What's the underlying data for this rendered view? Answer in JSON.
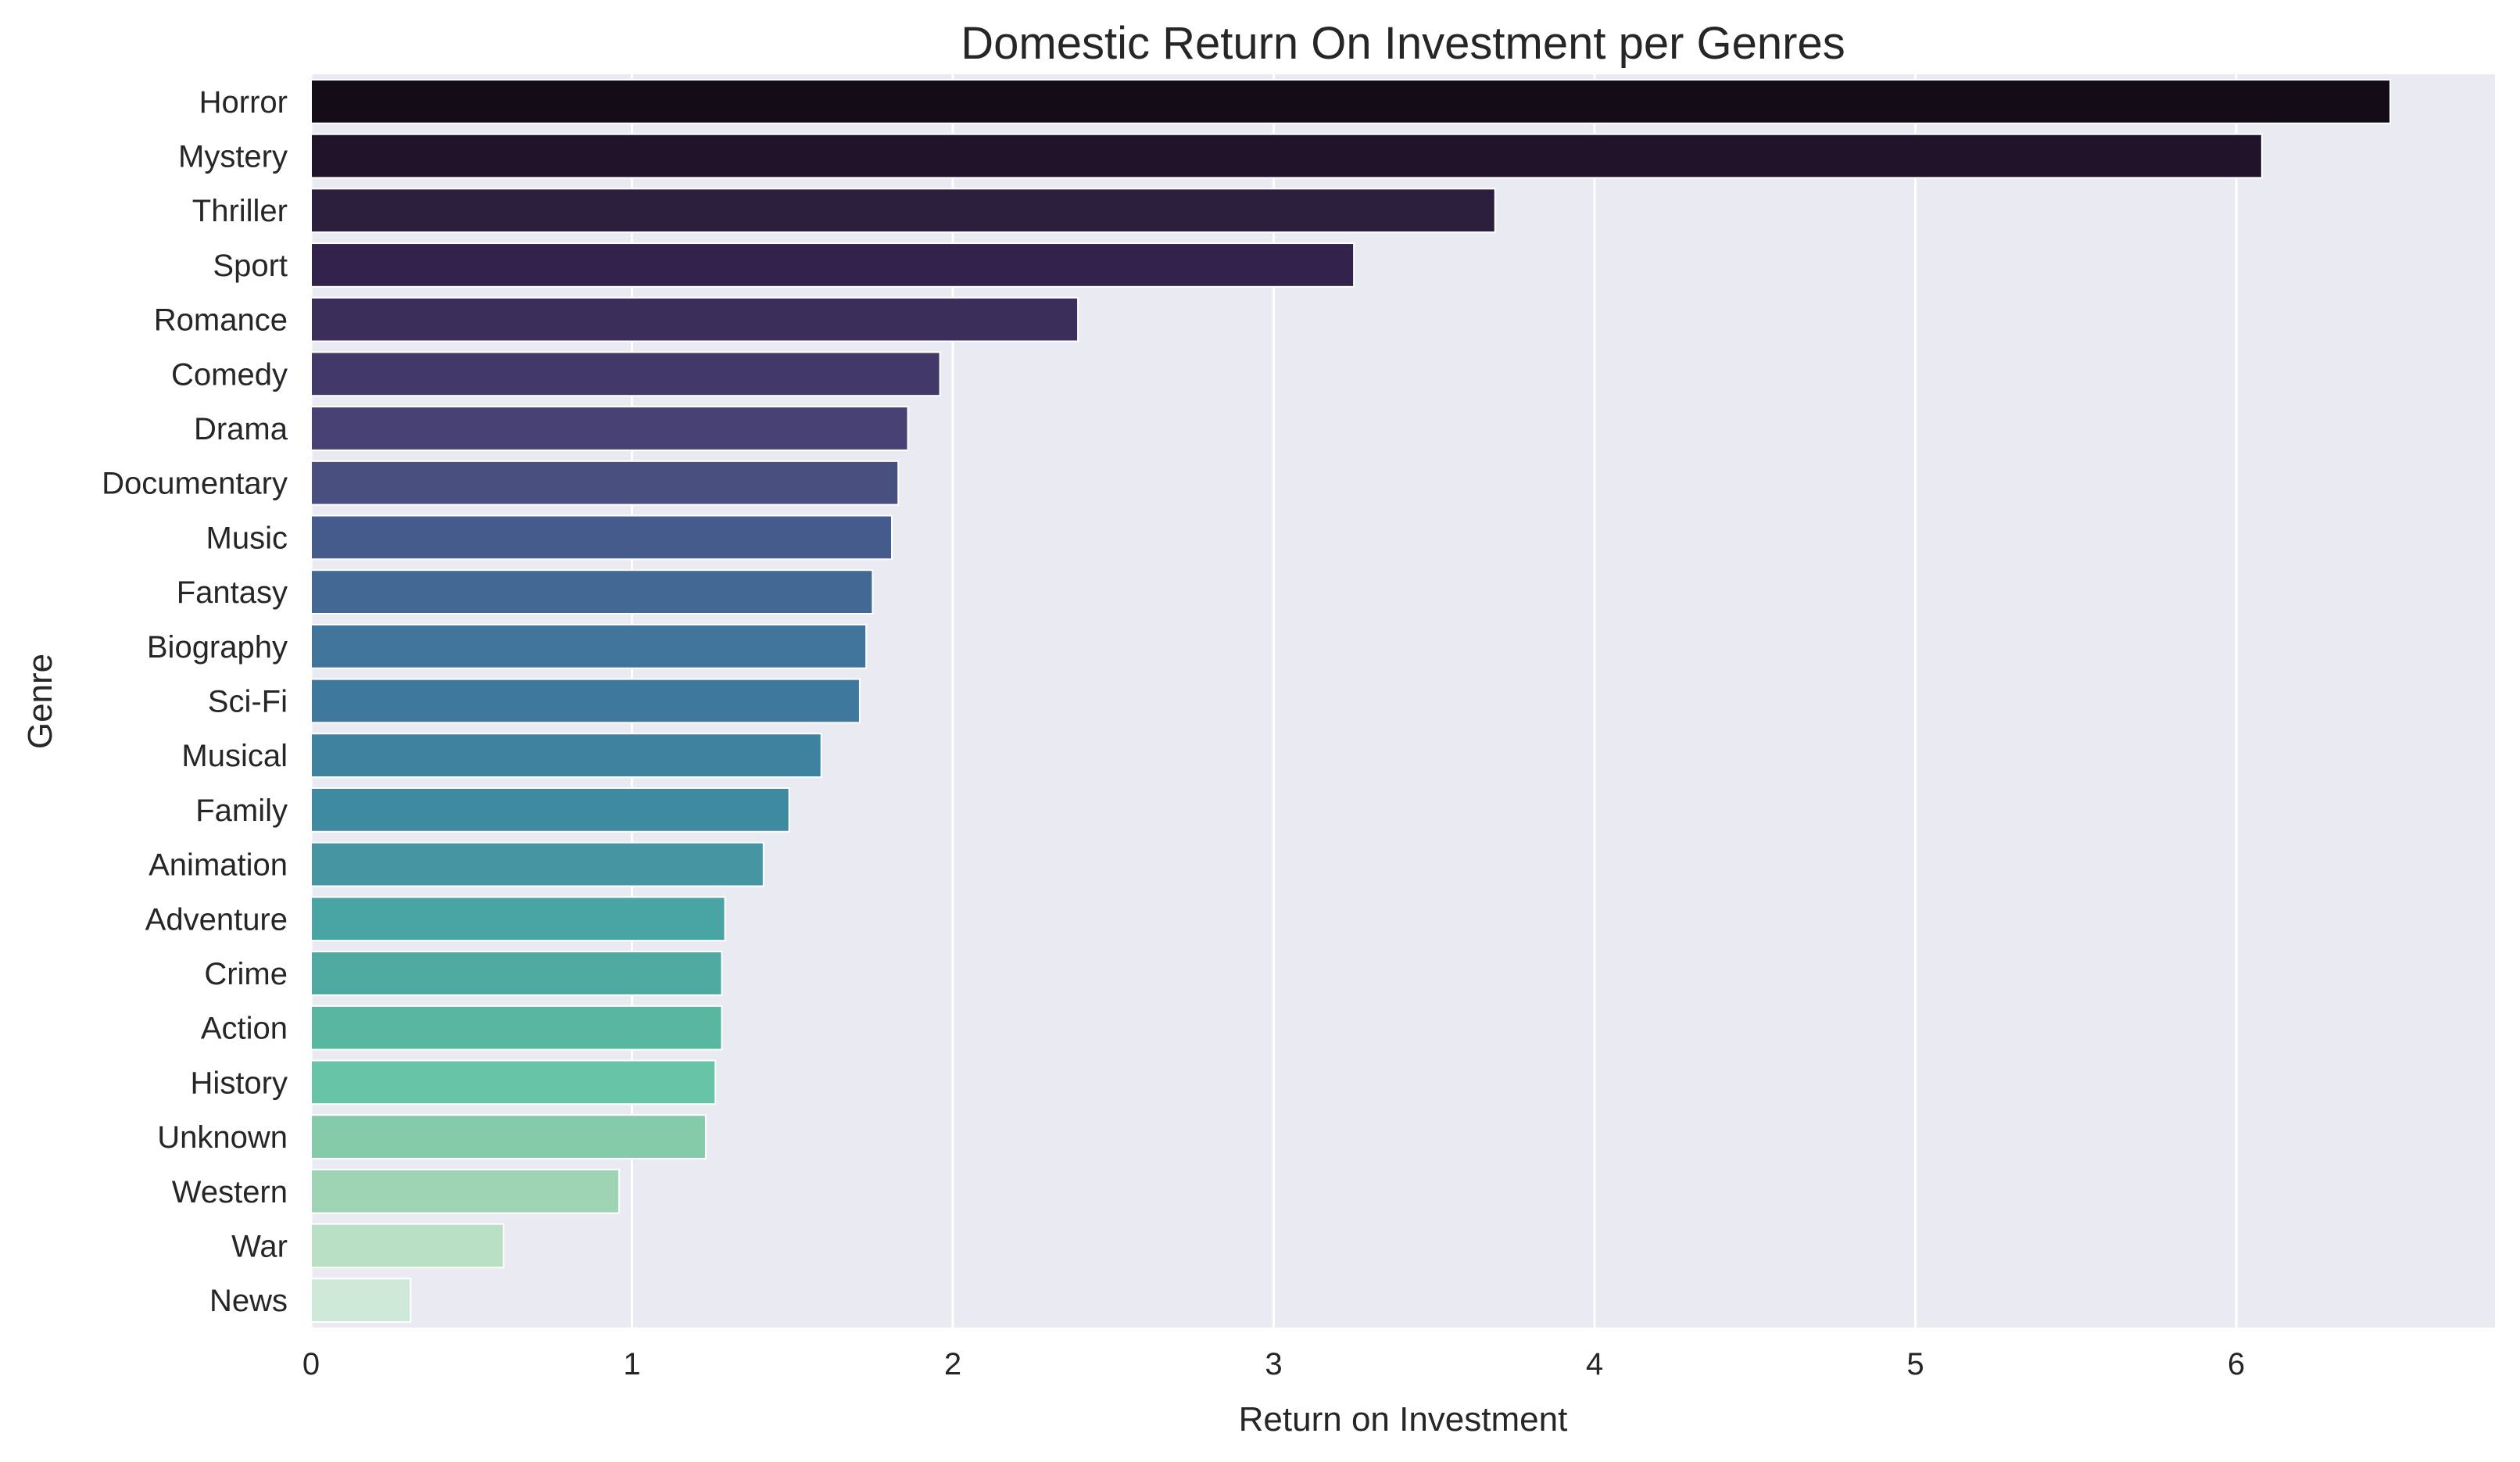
{
  "chart_data": {
    "type": "bar",
    "orientation": "horizontal",
    "title": "Domestic Return On Investment per Genres",
    "xlabel": "Return on Investment",
    "ylabel": "Genre",
    "xlim": [
      0,
      6.82
    ],
    "xticks": [
      0,
      1,
      2,
      3,
      4,
      5,
      6
    ],
    "grid": true,
    "legend": "none",
    "categories": [
      "Horror",
      "Mystery",
      "Thriller",
      "Sport",
      "Romance",
      "Comedy",
      "Drama",
      "Documentary",
      "Music",
      "Fantasy",
      "Biography",
      "Sci-Fi",
      "Musical",
      "Family",
      "Animation",
      "Adventure",
      "Crime",
      "Action",
      "History",
      "Unknown",
      "Western",
      "War",
      "News"
    ],
    "values": [
      6.48,
      6.08,
      3.69,
      3.25,
      2.39,
      1.96,
      1.86,
      1.83,
      1.81,
      1.75,
      1.73,
      1.71,
      1.59,
      1.49,
      1.41,
      1.29,
      1.28,
      1.28,
      1.26,
      1.23,
      0.96,
      0.6,
      0.31
    ],
    "colors": [
      "#130c17",
      "#21142a",
      "#2c1e3d",
      "#33234c",
      "#3c2e5b",
      "#433969",
      "#474273",
      "#47507f",
      "#455b8c",
      "#446894",
      "#41749a",
      "#3f789d",
      "#3e82a0",
      "#3e8aa1",
      "#4595a2",
      "#49a5a3",
      "#4ea9a1",
      "#58b6a1",
      "#68c4a7",
      "#84cba9",
      "#9ed4b3",
      "#b8e0c3",
      "#cfe9d9"
    ],
    "plot_background": "#eaeaf2",
    "grid_color": "#ffffff"
  }
}
